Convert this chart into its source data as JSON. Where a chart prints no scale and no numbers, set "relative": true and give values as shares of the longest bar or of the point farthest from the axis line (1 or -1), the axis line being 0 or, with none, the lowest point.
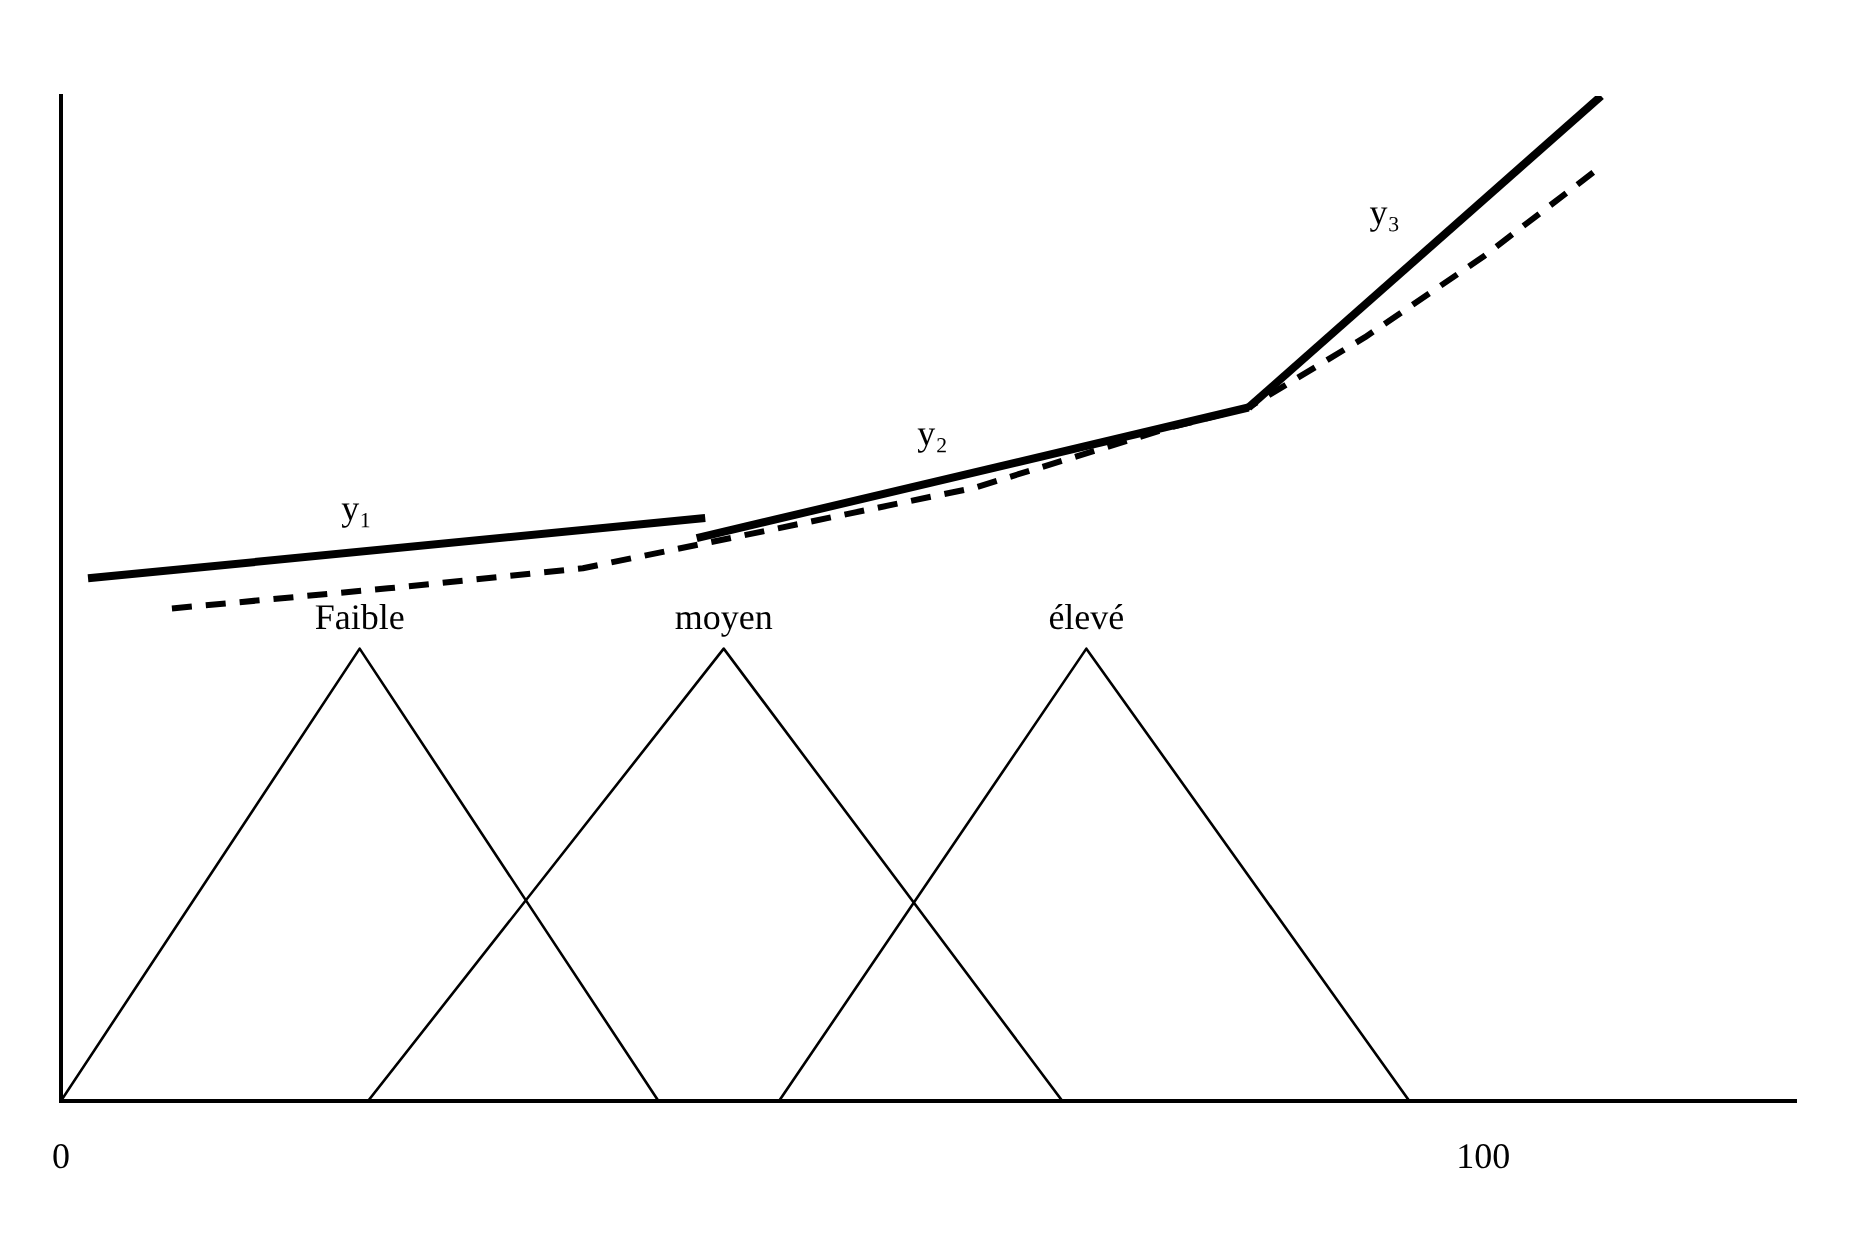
{
  "chart_data": {
    "type": "line",
    "relative": true,
    "xlim": [
      0,
      122
    ],
    "xticks": [
      0,
      100
    ],
    "tick_labels": "x",
    "legend": false,
    "marker": "none",
    "grid": false,
    "series": [
      {
        "name": "Faible",
        "color": "#000000",
        "x": [
          0,
          21,
          42
        ],
        "values": [
          0,
          0.45,
          0
        ]
      },
      {
        "name": "moyen",
        "color": "#000000",
        "x": [
          21.6,
          46.6,
          70.4
        ],
        "values": [
          0,
          0.45,
          0
        ]
      },
      {
        "name": "élevé",
        "color": "#000000",
        "x": [
          50.5,
          72.1,
          94.8
        ],
        "values": [
          0,
          0.45,
          0
        ]
      },
      {
        "name": "y₁",
        "color": "#000000",
        "x": [
          1.9,
          45.3
        ],
        "values": [
          0.52,
          0.58
        ]
      },
      {
        "name": "y₂",
        "color": "#000000",
        "x": [
          44.7,
          83.5
        ],
        "values": [
          0.56,
          0.69
        ]
      },
      {
        "name": "y₃",
        "color": "#000000",
        "x": [
          83.5,
          108.3
        ],
        "values": [
          0.69,
          1
        ]
      },
      {
        "color": "#000000",
        "line_style": "dashed",
        "x": [
          7.8,
          23,
          36.7,
          50.5,
          64.2,
          78,
          83.5,
          91.7,
          100,
          108.3
        ],
        "values": [
          0.49,
          0.51,
          0.53,
          0.57,
          0.61,
          0.67,
          0.69,
          0.76,
          0.84,
          0.93
        ]
      }
    ]
  }
}
